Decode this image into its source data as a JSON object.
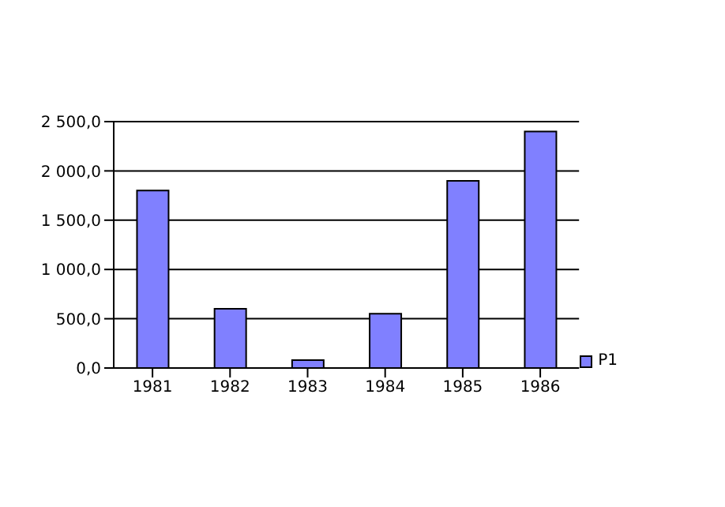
{
  "chart_data": {
    "type": "bar",
    "categories": [
      "1981",
      "1982",
      "1983",
      "1984",
      "1985",
      "1986"
    ],
    "series": [
      {
        "name": "P1",
        "color": "#8080ff",
        "values": [
          1800,
          600,
          80,
          550,
          1900,
          2400
        ]
      }
    ],
    "ylim": [
      0,
      2500
    ],
    "yticks": [
      {
        "value": 0,
        "label": "0,0"
      },
      {
        "value": 500,
        "label": "500,0"
      },
      {
        "value": 1000,
        "label": "1 000,0"
      },
      {
        "value": 1500,
        "label": "1 500,0"
      },
      {
        "value": 2000,
        "label": "2 000,0"
      },
      {
        "value": 2500,
        "label": "2 500,0"
      }
    ],
    "grid": "y",
    "legend": "right"
  }
}
